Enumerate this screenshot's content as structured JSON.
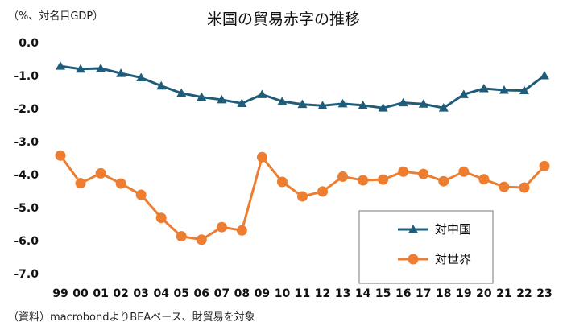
{
  "chart_data": {
    "type": "line",
    "title": "米国の貿易赤字の推移",
    "unit_label": "（%、対名目GDP）",
    "source": "（資料）macrobondよりBEAベース、財貿易を対象",
    "categories": [
      "99",
      "00",
      "01",
      "02",
      "03",
      "04",
      "05",
      "06",
      "07",
      "08",
      "09",
      "10",
      "11",
      "12",
      "13",
      "14",
      "15",
      "16",
      "17",
      "18",
      "19",
      "20",
      "21",
      "22",
      "23"
    ],
    "y_ticks": [
      "0.0",
      "-1.0",
      "-2.0",
      "-3.0",
      "-4.0",
      "-5.0",
      "-6.0",
      "-7.0"
    ],
    "ylim": [
      -7.0,
      0.0
    ],
    "xlabel": "",
    "ylabel": "",
    "grid": false,
    "legend_position": "bottom-right",
    "series": [
      {
        "name": "対中国",
        "color": "#1f5c7a",
        "marker": "triangle",
        "values": [
          -0.71,
          -0.8,
          -0.78,
          -0.93,
          -1.06,
          -1.31,
          -1.53,
          -1.65,
          -1.73,
          -1.84,
          -1.57,
          -1.78,
          -1.87,
          -1.91,
          -1.85,
          -1.9,
          -1.98,
          -1.82,
          -1.86,
          -1.98,
          -1.57,
          -1.39,
          -1.44,
          -1.45,
          -1.0
        ]
      },
      {
        "name": "対世界",
        "color": "#ed7d31",
        "marker": "circle",
        "values": [
          -3.42,
          -4.26,
          -3.96,
          -4.27,
          -4.61,
          -5.31,
          -5.87,
          -5.97,
          -5.59,
          -5.69,
          -3.47,
          -4.22,
          -4.66,
          -4.51,
          -4.06,
          -4.17,
          -4.15,
          -3.91,
          -3.98,
          -4.2,
          -3.91,
          -4.14,
          -4.37,
          -4.39,
          -3.74
        ]
      }
    ]
  }
}
